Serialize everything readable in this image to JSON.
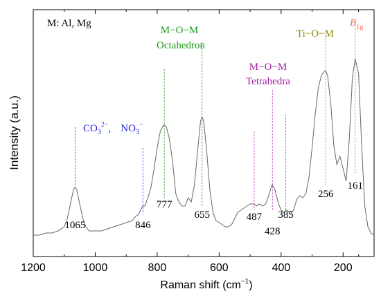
{
  "chart_data": {
    "type": "line",
    "xlabel": "Raman shift (cm",
    "xlabel_sup": "−1",
    "xlabel_close": ")",
    "ylabel": "Intensity (a.u.)",
    "x_axis": {
      "min": 100,
      "max": 1200,
      "reversed": true,
      "ticks": [
        1200,
        1000,
        800,
        600,
        400,
        200
      ]
    },
    "y_axis": {
      "min": 0,
      "max": 1,
      "ticks_labels": "none"
    },
    "legend_note": "M: Al, Mg",
    "peak_labels": [
      {
        "text": "1065",
        "x": 1065,
        "y": 0.05
      },
      {
        "text": "846",
        "x": 846,
        "y": 0.05
      },
      {
        "text": "777",
        "x": 777,
        "y": 0.15
      },
      {
        "text": "655",
        "x": 655,
        "y": 0.1
      },
      {
        "text": "487",
        "x": 487,
        "y": 0.09
      },
      {
        "text": "428",
        "x": 428,
        "y": 0.02
      },
      {
        "text": "385",
        "x": 385,
        "y": 0.1
      },
      {
        "text": "256",
        "x": 256,
        "y": 0.2
      },
      {
        "text": "161",
        "x": 161,
        "y": 0.24
      }
    ],
    "marker_lines": [
      {
        "x": 1065,
        "y_top": 0.52,
        "y_bottom": 0.22,
        "color": "#4a4af0"
      },
      {
        "x": 846,
        "y_top": 0.42,
        "y_bottom": 0.1,
        "color": "#4a4af0"
      },
      {
        "x": 777,
        "y_top": 0.8,
        "y_bottom": 0.18,
        "color": "#3aa03a"
      },
      {
        "x": 655,
        "y_top": 0.93,
        "y_bottom": 0.14,
        "color": "#3aa03a"
      },
      {
        "x": 487,
        "y_top": 0.5,
        "y_bottom": 0.12,
        "color": "#c040c0"
      },
      {
        "x": 428,
        "y_top": 0.7,
        "y_bottom": 0.12,
        "color": "#c040c0"
      },
      {
        "x": 385,
        "y_top": 0.58,
        "y_bottom": 0.12,
        "color": "#c040c0"
      },
      {
        "x": 256,
        "y_top": 0.95,
        "y_bottom": 0.24,
        "color": "#9aa83a"
      },
      {
        "x": 161,
        "y_top": 1.04,
        "y_bottom": 0.29,
        "color": "#f07a5a"
      }
    ],
    "group_labels": [
      {
        "lines": [
          "M−O−M",
          "Octahedron"
        ],
        "color": "#1a9a1a"
      },
      {
        "lines": [
          "M−O−M",
          "Tetrahedra"
        ],
        "color": "#a020a0"
      },
      {
        "lines": [
          "Ti−O−M"
        ],
        "color": "#8a8a00"
      }
    ],
    "anion_label": {
      "co3": "CO",
      "co3_sub": "3",
      "co3_sup": "2−",
      "sep": ",",
      "no3": "NO",
      "no3_sub": "3",
      "no3_sup": "−",
      "color": "#2222ee"
    },
    "b1g_label": {
      "main": "B",
      "sub": "1g",
      "color": "#f07050"
    },
    "series": [
      {
        "color": "#666666",
        "x": [
          1200,
          1180,
          1160,
          1140,
          1120,
          1100,
          1090,
          1080,
          1070,
          1065,
          1060,
          1050,
          1040,
          1030,
          1020,
          1000,
          980,
          960,
          940,
          920,
          900,
          880,
          870,
          860,
          850,
          846,
          840,
          830,
          820,
          810,
          800,
          790,
          780,
          777,
          770,
          760,
          750,
          740,
          730,
          720,
          710,
          700,
          690,
          680,
          670,
          660,
          655,
          650,
          640,
          630,
          620,
          610,
          600,
          590,
          580,
          570,
          560,
          550,
          540,
          530,
          520,
          510,
          500,
          490,
          487,
          480,
          470,
          460,
          450,
          440,
          430,
          428,
          420,
          410,
          400,
          390,
          385,
          380,
          370,
          360,
          350,
          340,
          330,
          320,
          310,
          300,
          290,
          280,
          270,
          260,
          256,
          250,
          240,
          230,
          220,
          210,
          200,
          190,
          180,
          170,
          161,
          150,
          140,
          130,
          120,
          110,
          100
        ],
        "y": [
          0.0,
          0.0,
          0.01,
          0.01,
          0.02,
          0.04,
          0.08,
          0.15,
          0.22,
          0.23,
          0.22,
          0.15,
          0.08,
          0.04,
          0.02,
          0.02,
          0.02,
          0.03,
          0.04,
          0.05,
          0.06,
          0.07,
          0.09,
          0.1,
          0.13,
          0.14,
          0.14,
          0.18,
          0.23,
          0.32,
          0.42,
          0.5,
          0.53,
          0.53,
          0.52,
          0.46,
          0.35,
          0.2,
          0.16,
          0.14,
          0.14,
          0.18,
          0.16,
          0.24,
          0.4,
          0.55,
          0.57,
          0.55,
          0.4,
          0.22,
          0.11,
          0.07,
          0.06,
          0.05,
          0.04,
          0.04,
          0.05,
          0.08,
          0.11,
          0.12,
          0.13,
          0.14,
          0.15,
          0.15,
          0.15,
          0.14,
          0.15,
          0.14,
          0.15,
          0.19,
          0.24,
          0.24,
          0.22,
          0.16,
          0.12,
          0.11,
          0.12,
          0.12,
          0.1,
          0.12,
          0.17,
          0.19,
          0.18,
          0.2,
          0.28,
          0.42,
          0.58,
          0.71,
          0.77,
          0.79,
          0.79,
          0.77,
          0.64,
          0.43,
          0.34,
          0.38,
          0.32,
          0.26,
          0.46,
          0.76,
          0.85,
          0.78,
          0.43,
          0.14,
          0.04,
          0.01,
          0.0
        ]
      }
    ]
  }
}
